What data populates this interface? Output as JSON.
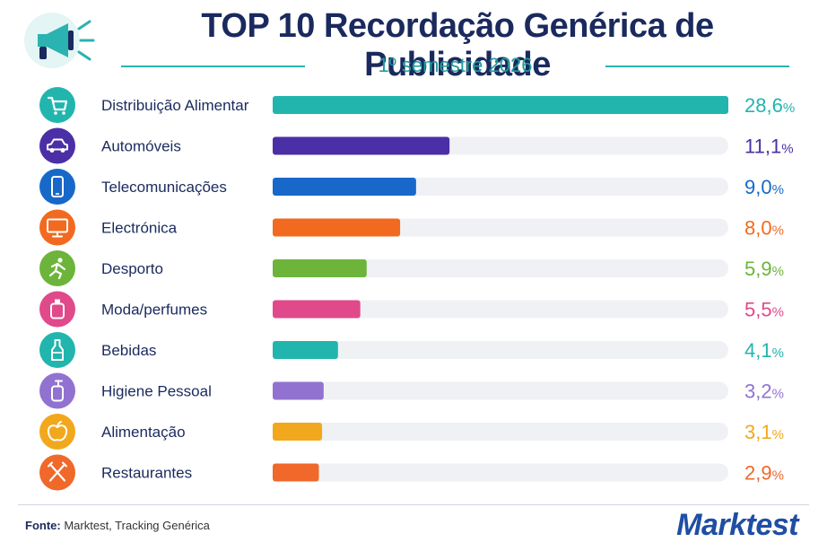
{
  "header": {
    "title": "TOP 10 Recordação Genérica de Publicidade",
    "subtitle": "1º semestre 2026",
    "icon": "megaphone-icon"
  },
  "chart_data": {
    "type": "bar",
    "orientation": "horizontal",
    "xlim": [
      0,
      28.6
    ],
    "categories": [
      "Distribuição Alimentar",
      "Automóveis",
      "Telecomunicações",
      "Electrónica",
      "Desporto",
      "Moda/perfumes",
      "Bebidas",
      "Higiene Pessoal",
      "Alimentação",
      "Restaurantes"
    ],
    "values": [
      28.6,
      11.1,
      9.0,
      8.0,
      5.9,
      5.5,
      4.1,
      3.2,
      3.1,
      2.9
    ],
    "value_labels": [
      "28,6",
      "11,1",
      "9,0",
      "8,0",
      "5,9",
      "5,5",
      "4,1",
      "3,2",
      "3,1",
      "2,9"
    ],
    "unit": "%",
    "colors": [
      "#21b5ad",
      "#4b2fa6",
      "#1768c9",
      "#f26a1f",
      "#6cb43a",
      "#e0498a",
      "#21b5ad",
      "#9272d0",
      "#f2a81d",
      "#f0682a"
    ],
    "icons": [
      "shopping-cart-icon",
      "car-icon",
      "smartphone-icon",
      "monitor-icon",
      "running-person-icon",
      "perfume-bottle-icon",
      "drink-bottle-icon",
      "pump-bottle-icon",
      "apple-icon",
      "fork-knife-icon"
    ],
    "track_color": "#f0f1f4"
  },
  "footer": {
    "source_label": "Fonte:",
    "source_text": "Marktest, Tracking Genérica",
    "logo": "Marktest"
  }
}
